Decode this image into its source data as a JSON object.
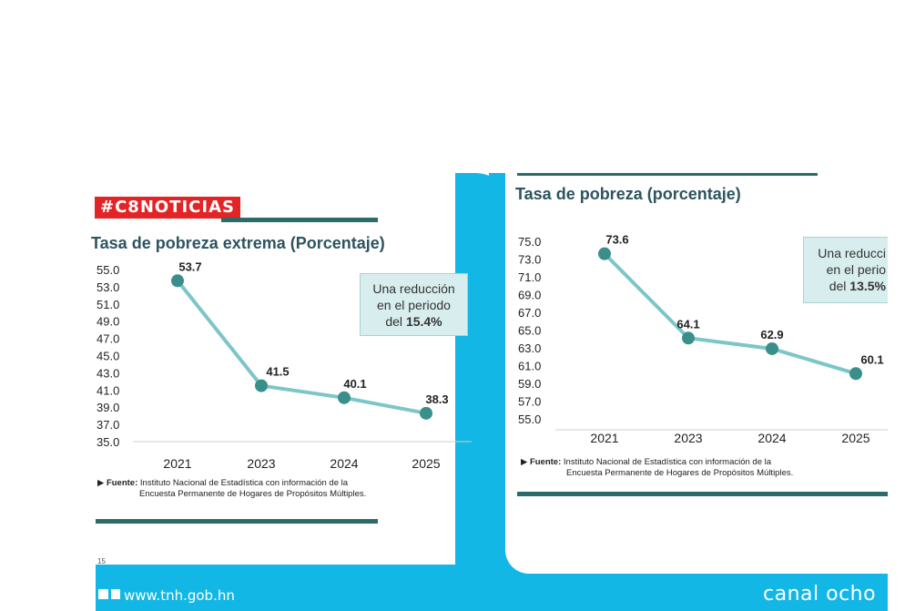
{
  "overlay": {
    "hashtag": "#C8NOTICIAS",
    "footer_url": "www.tnh.gob.hn",
    "brand": "canal ocho",
    "left_fragment": "15"
  },
  "colors": {
    "line": "#7cc6c7",
    "marker": "#3a8f8b",
    "rule": "#2b6b68",
    "frame": "#12b7e6",
    "tag": "#e32426",
    "annotation_bg": "#d8eeee"
  },
  "chart_data": [
    {
      "type": "line",
      "title": "Tasa de pobreza extrema (Porcentaje)",
      "categories": [
        "2021",
        "2023",
        "2024",
        "2025"
      ],
      "values": [
        53.7,
        41.5,
        40.1,
        38.3
      ],
      "data_labels": [
        "53.7",
        "41.5",
        "40.1",
        "38.3"
      ],
      "yticks": [
        "55.0",
        "53.0",
        "51.0",
        "49.0",
        "47.0",
        "45.0",
        "43.0",
        "41.0",
        "39.0",
        "37.0",
        "35.0"
      ],
      "ylim": [
        35.0,
        55.0
      ],
      "grid": false,
      "annotation": {
        "line1": "Una reducción",
        "line2": "en el periodo",
        "line3_prefix": "del ",
        "line3_value": "15.4%"
      },
      "source": {
        "label": "Fuente:",
        "line1": " Instituto Nacional de Estadística con información de la",
        "line2": "Encuesta Permanente de Hogares de Propósitos Múltiples."
      }
    },
    {
      "type": "line",
      "title": "Tasa de pobreza (porcentaje)",
      "categories": [
        "2021",
        "2023",
        "2024",
        "2025"
      ],
      "values": [
        73.6,
        64.1,
        62.9,
        60.1
      ],
      "data_labels": [
        "73.6",
        "64.1",
        "62.9",
        "60.1"
      ],
      "yticks": [
        "75.0",
        "73.0",
        "71.0",
        "69.0",
        "67.0",
        "65.0",
        "63.0",
        "61.0",
        "59.0",
        "57.0",
        "55.0"
      ],
      "ylim": [
        55.0,
        75.0
      ],
      "grid": false,
      "annotation": {
        "line1": "Una reducci",
        "line2": "en el perio",
        "line3_prefix": "del ",
        "line3_value": "13.5%"
      },
      "source": {
        "label": "Fuente:",
        "line1": " Instituto Nacional de Estadística con información de la",
        "line2": "Encuesta Permanente de Hogares de Propósitos Múltiples."
      }
    }
  ]
}
